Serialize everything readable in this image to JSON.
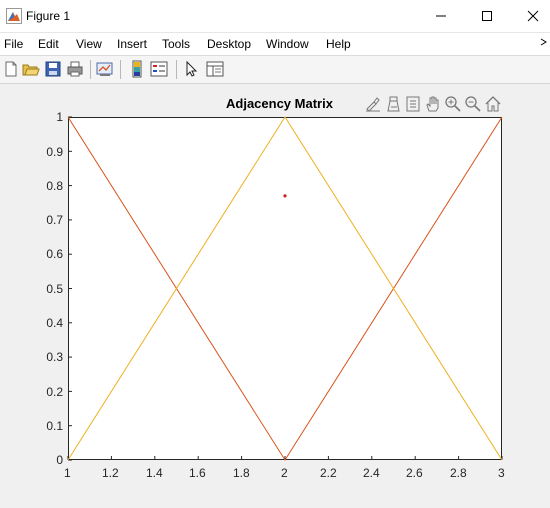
{
  "window": {
    "title": "Figure 1"
  },
  "menu": {
    "items": [
      "File",
      "Edit",
      "View",
      "Insert",
      "Tools",
      "Desktop",
      "Window",
      "Help"
    ]
  },
  "icons": {
    "app": "matlab-figure-icon",
    "minimize": "minimize-icon",
    "maximize": "maximize-icon",
    "close": "close-icon",
    "toolbar": [
      "new-figure-icon",
      "open-file-icon",
      "save-icon",
      "print-icon",
      "link-plot-icon",
      "insert-colorbar-icon",
      "insert-legend-icon",
      "edit-plot-icon",
      "property-inspector-icon"
    ],
    "axes_toolbar": [
      "brush-icon",
      "data-tips-icon",
      "restore-view-icon",
      "pan-icon",
      "zoom-in-icon",
      "zoom-out-icon",
      "home-icon"
    ]
  },
  "colors": {
    "series1": "#D95319",
    "series2": "#EDB120",
    "marker": "#CC2222"
  },
  "chart_data": {
    "type": "line",
    "title": "Adjacency Matrix",
    "xlabel": "",
    "ylabel": "",
    "xlim": [
      1,
      3
    ],
    "ylim": [
      0,
      1
    ],
    "xticks": [
      "1",
      "1.2",
      "1.4",
      "1.6",
      "1.8",
      "2",
      "2.2",
      "2.4",
      "2.6",
      "2.8",
      "3"
    ],
    "yticks": [
      "0",
      "0.1",
      "0.2",
      "0.3",
      "0.4",
      "0.5",
      "0.6",
      "0.7",
      "0.8",
      "0.9",
      "1"
    ],
    "grid": false,
    "series": [
      {
        "x": [
          1,
          2,
          3
        ],
        "y": [
          1,
          0,
          1
        ]
      },
      {
        "x": [
          1,
          2,
          3
        ],
        "y": [
          0,
          1,
          0
        ]
      }
    ],
    "points": [
      {
        "x": 2,
        "y": 0.77
      }
    ]
  }
}
